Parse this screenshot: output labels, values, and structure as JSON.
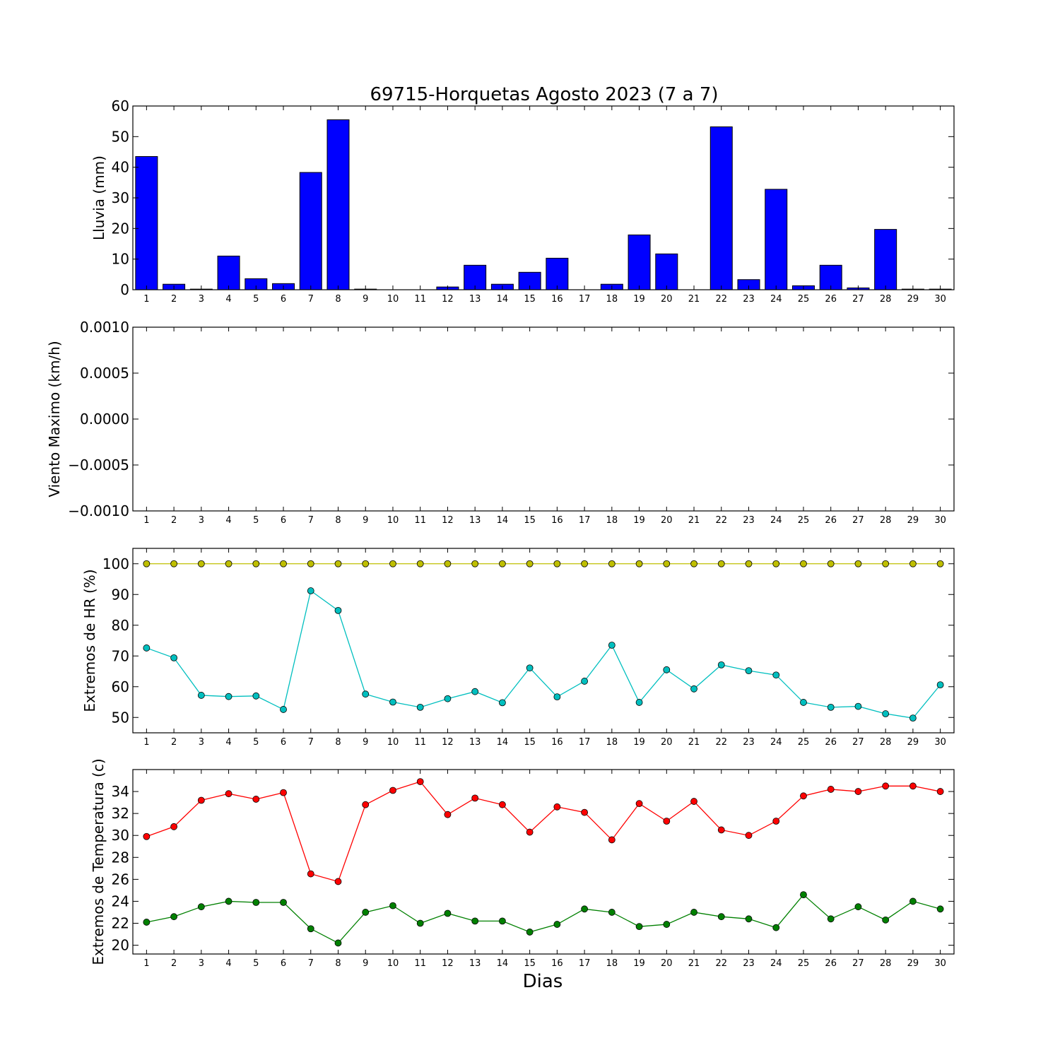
{
  "figure_title": "69715-Horquetas Agosto 2023  (7 a 7)",
  "xlabel": "Dias",
  "colors": {
    "rain_bar": "#0000ff",
    "hr_max": "#bfbf00",
    "hr_min": "#00bfbf",
    "temp_max": "#ff0000",
    "temp_min": "#008000"
  },
  "chart_data": [
    {
      "type": "bar",
      "ylabel": "Lluvia (mm)",
      "categories": [
        "1",
        "2",
        "3",
        "4",
        "5",
        "6",
        "7",
        "8",
        "9",
        "10",
        "11",
        "12",
        "13",
        "14",
        "15",
        "16",
        "17",
        "18",
        "19",
        "20",
        "21",
        "22",
        "23",
        "24",
        "25",
        "26",
        "27",
        "28",
        "29",
        "30"
      ],
      "values": [
        43.5,
        1.8,
        0.2,
        11.0,
        3.6,
        2.0,
        38.3,
        55.5,
        0.2,
        0.0,
        0.0,
        0.9,
        8.0,
        1.8,
        5.7,
        10.3,
        0.0,
        1.8,
        17.9,
        11.7,
        0.0,
        53.2,
        3.3,
        32.8,
        1.3,
        8.0,
        0.6,
        19.7,
        0.2,
        0.2
      ],
      "ylim": [
        0,
        60
      ],
      "yticks": [
        "0",
        "10",
        "20",
        "30",
        "40",
        "50",
        "60"
      ]
    },
    {
      "type": "line",
      "ylabel": "Viento Maximo (km/h)",
      "categories": [
        "1",
        "2",
        "3",
        "4",
        "5",
        "6",
        "7",
        "8",
        "9",
        "10",
        "11",
        "12",
        "13",
        "14",
        "15",
        "16",
        "17",
        "18",
        "19",
        "20",
        "21",
        "22",
        "23",
        "24",
        "25",
        "26",
        "27",
        "28",
        "29",
        "30"
      ],
      "series": [],
      "ylim": [
        -0.001,
        0.001
      ],
      "yticks": [
        "−0.0010",
        "−0.0005",
        "0.0000",
        "0.0005",
        "0.0010"
      ]
    },
    {
      "type": "line",
      "ylabel": "Extremos de HR (%)",
      "categories": [
        "1",
        "2",
        "3",
        "4",
        "5",
        "6",
        "7",
        "8",
        "9",
        "10",
        "11",
        "12",
        "13",
        "14",
        "15",
        "16",
        "17",
        "18",
        "19",
        "20",
        "21",
        "22",
        "23",
        "24",
        "25",
        "26",
        "27",
        "28",
        "29",
        "30"
      ],
      "series": [
        {
          "color": "#bfbf00",
          "values": [
            100,
            100,
            100,
            100,
            100,
            100,
            100,
            100,
            100,
            100,
            100,
            100,
            100,
            100,
            100,
            100,
            100,
            100,
            100,
            100,
            100,
            100,
            100,
            100,
            100,
            100,
            100,
            100,
            100,
            100
          ]
        },
        {
          "color": "#00bfbf",
          "values": [
            72.6,
            69.4,
            57.2,
            56.8,
            57.0,
            52.6,
            91.2,
            84.8,
            57.6,
            55.0,
            53.3,
            56.1,
            58.4,
            54.8,
            66.1,
            56.7,
            61.8,
            73.5,
            54.9,
            65.5,
            59.3,
            67.1,
            65.2,
            63.8,
            54.9,
            53.3,
            53.6,
            51.2,
            49.8,
            60.6
          ]
        }
      ],
      "ylim": [
        45,
        105
      ],
      "yticks": [
        "50",
        "60",
        "70",
        "80",
        "90",
        "100"
      ]
    },
    {
      "type": "line",
      "ylabel": "Extremos de Temperatura (c)",
      "categories": [
        "1",
        "2",
        "3",
        "4",
        "5",
        "6",
        "7",
        "8",
        "9",
        "10",
        "11",
        "12",
        "13",
        "14",
        "15",
        "16",
        "17",
        "18",
        "19",
        "20",
        "21",
        "22",
        "23",
        "24",
        "25",
        "26",
        "27",
        "28",
        "29",
        "30"
      ],
      "series": [
        {
          "color": "#ff0000",
          "values": [
            29.9,
            30.8,
            33.2,
            33.8,
            33.3,
            33.9,
            26.5,
            25.8,
            32.8,
            34.1,
            34.9,
            31.9,
            33.4,
            32.8,
            30.3,
            32.6,
            32.1,
            29.6,
            32.9,
            31.3,
            33.1,
            30.5,
            30.0,
            31.3,
            33.6,
            34.2,
            34.0,
            34.5,
            34.5,
            34.0
          ]
        },
        {
          "color": "#008000",
          "values": [
            22.1,
            22.6,
            23.5,
            24.0,
            23.9,
            23.9,
            21.5,
            20.2,
            23.0,
            23.6,
            22.0,
            22.9,
            22.2,
            22.2,
            21.2,
            21.9,
            23.3,
            23.0,
            21.7,
            21.9,
            23.0,
            22.6,
            22.4,
            21.6,
            24.6,
            22.4,
            23.5,
            22.3,
            24.0,
            23.3
          ]
        }
      ],
      "ylim": [
        19.2,
        36.0
      ],
      "yticks": [
        "20",
        "22",
        "24",
        "26",
        "28",
        "30",
        "32",
        "34"
      ]
    }
  ]
}
